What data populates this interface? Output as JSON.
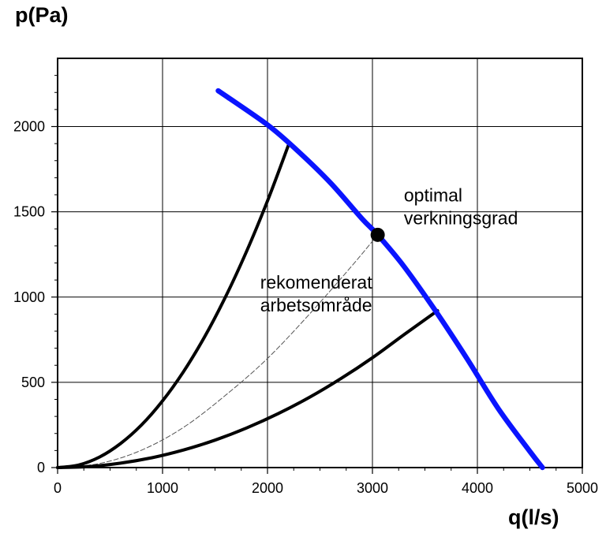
{
  "chart_data": {
    "type": "line",
    "ylabel": "p(Pa)",
    "xlabel": "q(l/s)",
    "xlim": [
      0,
      5000
    ],
    "ylim": [
      0,
      2400
    ],
    "x_ticks": [
      0,
      1000,
      2000,
      3000,
      4000,
      5000
    ],
    "y_ticks": [
      0,
      500,
      1000,
      1500,
      2000
    ],
    "grid": true,
    "colors": {
      "fan_curve": "#0a14ff",
      "system": "#000000",
      "dashed": "#555555"
    },
    "series": [
      {
        "style": "blue-thick",
        "x": [
          1530,
          2000,
          2300,
          2600,
          2900,
          3050,
          3300,
          3600,
          3900,
          4200,
          4500,
          4620
        ],
        "y": [
          2210,
          2010,
          1850,
          1670,
          1460,
          1365,
          1180,
          920,
          640,
          345,
          95,
          0
        ]
      },
      {
        "style": "black",
        "x": [
          0,
          200,
          400,
          600,
          800,
          1000,
          1200,
          1400,
          1600,
          1800,
          2000,
          2200
        ],
        "y": [
          0,
          15,
          62,
          141,
          250,
          391,
          563,
          766,
          1001,
          1267,
          1564,
          1892
        ]
      },
      {
        "style": "black",
        "x": [
          0,
          300,
          600,
          900,
          1200,
          1500,
          1800,
          2100,
          2400,
          2700,
          3000,
          3300,
          3620
        ],
        "y": [
          0,
          6,
          26,
          58,
          103,
          161,
          232,
          316,
          412,
          522,
          644,
          779,
          920
        ]
      },
      {
        "style": "dashed",
        "x": [
          0,
          400,
          800,
          1200,
          1600,
          2000,
          2400,
          2800,
          3050
        ],
        "y": [
          0,
          24,
          102,
          236,
          424,
          640,
          900,
          1180,
          1365
        ]
      }
    ],
    "points": [
      {
        "x": 3050,
        "y": 1365
      }
    ],
    "annotations": [
      {
        "lines": [
          "optimal",
          "verkningsgrad"
        ],
        "x": 3300,
        "y": 1560
      },
      {
        "lines": [
          "rekomenderat",
          "arbetsområde"
        ],
        "x": 1930,
        "y": 1050
      }
    ]
  }
}
